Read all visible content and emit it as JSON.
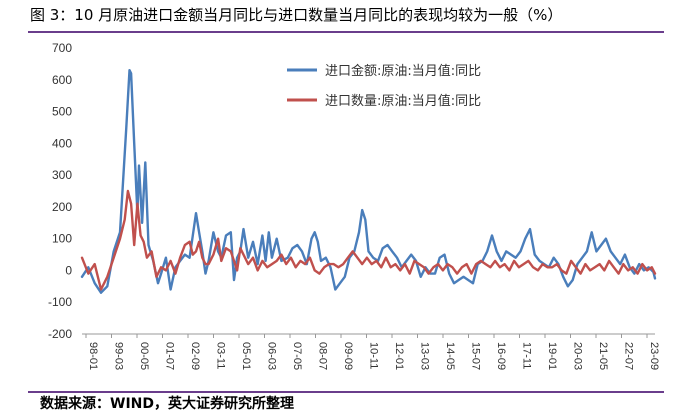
{
  "figure": {
    "title": "图 3：10 月原油进口金额当月同比与进口数量当月同比的表现均较为一般（%）",
    "source": "数据来源：WIND，英大证券研究所整理"
  },
  "chart_data": {
    "type": "line",
    "ylim": [
      -200,
      700
    ],
    "yticks": [
      "700",
      "600",
      "500",
      "400",
      "300",
      "200",
      "100",
      "0",
      "-100",
      "-200"
    ],
    "xticks": [
      "98-01",
      "99-03",
      "00-05",
      "01-07",
      "02-09",
      "03-11",
      "05-01",
      "06-03",
      "07-05",
      "08-07",
      "09-09",
      "10-11",
      "12-01",
      "13-03",
      "14-05",
      "15-07",
      "16-09",
      "17-11",
      "19-01",
      "20-03",
      "21-05",
      "22-07",
      "23-09"
    ],
    "legend_position": "top-right",
    "series": [
      {
        "name": "进口金额:原油:当月值:同比",
        "color": "#4a7ebb",
        "points": [
          [
            0,
            -20
          ],
          [
            4,
            10
          ],
          [
            8,
            -40
          ],
          [
            12,
            -70
          ],
          [
            16,
            -50
          ],
          [
            20,
            60
          ],
          [
            24,
            120
          ],
          [
            28,
            450
          ],
          [
            30,
            630
          ],
          [
            31,
            620
          ],
          [
            33,
            400
          ],
          [
            35,
            180
          ],
          [
            36,
            330
          ],
          [
            38,
            150
          ],
          [
            40,
            340
          ],
          [
            42,
            80
          ],
          [
            45,
            30
          ],
          [
            48,
            -40
          ],
          [
            50,
            -10
          ],
          [
            53,
            40
          ],
          [
            56,
            -60
          ],
          [
            59,
            10
          ],
          [
            62,
            30
          ],
          [
            65,
            50
          ],
          [
            68,
            40
          ],
          [
            70,
            110
          ],
          [
            72,
            180
          ],
          [
            74,
            120
          ],
          [
            76,
            60
          ],
          [
            78,
            -10
          ],
          [
            80,
            30
          ],
          [
            83,
            120
          ],
          [
            86,
            60
          ],
          [
            88,
            40
          ],
          [
            91,
            110
          ],
          [
            94,
            120
          ],
          [
            96,
            -30
          ],
          [
            98,
            40
          ],
          [
            100,
            60
          ],
          [
            102,
            130
          ],
          [
            105,
            40
          ],
          [
            108,
            90
          ],
          [
            111,
            20
          ],
          [
            114,
            110
          ],
          [
            116,
            30
          ],
          [
            118,
            120
          ],
          [
            120,
            40
          ],
          [
            123,
            100
          ],
          [
            126,
            30
          ],
          [
            130,
            40
          ],
          [
            133,
            70
          ],
          [
            136,
            80
          ],
          [
            139,
            60
          ],
          [
            142,
            20
          ],
          [
            145,
            100
          ],
          [
            147,
            120
          ],
          [
            149,
            90
          ],
          [
            151,
            30
          ],
          [
            154,
            40
          ],
          [
            157,
            10
          ],
          [
            160,
            -60
          ],
          [
            163,
            -40
          ],
          [
            166,
            -20
          ],
          [
            169,
            40
          ],
          [
            172,
            60
          ],
          [
            175,
            120
          ],
          [
            177,
            190
          ],
          [
            179,
            160
          ],
          [
            181,
            60
          ],
          [
            184,
            40
          ],
          [
            187,
            30
          ],
          [
            190,
            70
          ],
          [
            193,
            80
          ],
          [
            196,
            60
          ],
          [
            199,
            40
          ],
          [
            202,
            10
          ],
          [
            205,
            30
          ],
          [
            208,
            50
          ],
          [
            211,
            30
          ],
          [
            214,
            -20
          ],
          [
            217,
            10
          ],
          [
            220,
            -10
          ],
          [
            223,
            -10
          ],
          [
            226,
            40
          ],
          [
            229,
            50
          ],
          [
            232,
            -10
          ],
          [
            235,
            -40
          ],
          [
            238,
            -30
          ],
          [
            241,
            -20
          ],
          [
            244,
            -30
          ],
          [
            247,
            -40
          ],
          [
            250,
            20
          ],
          [
            253,
            30
          ],
          [
            256,
            60
          ],
          [
            259,
            110
          ],
          [
            262,
            60
          ],
          [
            265,
            30
          ],
          [
            268,
            60
          ],
          [
            271,
            50
          ],
          [
            274,
            40
          ],
          [
            277,
            60
          ],
          [
            280,
            100
          ],
          [
            283,
            130
          ],
          [
            286,
            50
          ],
          [
            289,
            30
          ],
          [
            292,
            20
          ],
          [
            295,
            10
          ],
          [
            298,
            40
          ],
          [
            301,
            20
          ],
          [
            304,
            -20
          ],
          [
            307,
            -50
          ],
          [
            310,
            -30
          ],
          [
            313,
            20
          ],
          [
            316,
            40
          ],
          [
            319,
            60
          ],
          [
            322,
            120
          ],
          [
            325,
            60
          ],
          [
            328,
            80
          ],
          [
            331,
            100
          ],
          [
            334,
            60
          ],
          [
            337,
            40
          ],
          [
            340,
            20
          ],
          [
            343,
            50
          ],
          [
            346,
            10
          ],
          [
            349,
            -10
          ],
          [
            352,
            20
          ],
          [
            355,
            0
          ],
          [
            358,
            10
          ],
          [
            361,
            -5
          ],
          [
            362,
            -25
          ]
        ]
      },
      {
        "name": "进口数量:原油:当月值:同比",
        "color": "#c0504d",
        "points": [
          [
            0,
            40
          ],
          [
            4,
            -10
          ],
          [
            8,
            20
          ],
          [
            12,
            -60
          ],
          [
            16,
            -20
          ],
          [
            20,
            40
          ],
          [
            24,
            100
          ],
          [
            27,
            160
          ],
          [
            29,
            250
          ],
          [
            31,
            210
          ],
          [
            33,
            80
          ],
          [
            35,
            210
          ],
          [
            37,
            110
          ],
          [
            39,
            90
          ],
          [
            41,
            40
          ],
          [
            44,
            60
          ],
          [
            47,
            -20
          ],
          [
            50,
            10
          ],
          [
            53,
            0
          ],
          [
            56,
            30
          ],
          [
            59,
            -10
          ],
          [
            62,
            40
          ],
          [
            65,
            80
          ],
          [
            68,
            90
          ],
          [
            70,
            50
          ],
          [
            72,
            60
          ],
          [
            74,
            90
          ],
          [
            76,
            40
          ],
          [
            78,
            20
          ],
          [
            80,
            20
          ],
          [
            83,
            50
          ],
          [
            86,
            100
          ],
          [
            88,
            30
          ],
          [
            91,
            70
          ],
          [
            94,
            60
          ],
          [
            96,
            30
          ],
          [
            98,
            0
          ],
          [
            100,
            70
          ],
          [
            102,
            50
          ],
          [
            105,
            20
          ],
          [
            108,
            40
          ],
          [
            111,
            0
          ],
          [
            114,
            30
          ],
          [
            117,
            10
          ],
          [
            120,
            20
          ],
          [
            123,
            30
          ],
          [
            126,
            50
          ],
          [
            129,
            20
          ],
          [
            132,
            40
          ],
          [
            135,
            10
          ],
          [
            138,
            30
          ],
          [
            141,
            20
          ],
          [
            144,
            40
          ],
          [
            147,
            0
          ],
          [
            150,
            -10
          ],
          [
            153,
            10
          ],
          [
            156,
            20
          ],
          [
            159,
            20
          ],
          [
            162,
            10
          ],
          [
            165,
            20
          ],
          [
            168,
            40
          ],
          [
            171,
            60
          ],
          [
            174,
            40
          ],
          [
            177,
            20
          ],
          [
            180,
            40
          ],
          [
            183,
            20
          ],
          [
            186,
            30
          ],
          [
            189,
            10
          ],
          [
            192,
            40
          ],
          [
            195,
            10
          ],
          [
            198,
            20
          ],
          [
            201,
            0
          ],
          [
            204,
            20
          ],
          [
            207,
            -10
          ],
          [
            210,
            30
          ],
          [
            213,
            20
          ],
          [
            216,
            10
          ],
          [
            219,
            -10
          ],
          [
            222,
            10
          ],
          [
            225,
            20
          ],
          [
            228,
            0
          ],
          [
            231,
            20
          ],
          [
            234,
            10
          ],
          [
            237,
            -10
          ],
          [
            240,
            10
          ],
          [
            243,
            20
          ],
          [
            246,
            -10
          ],
          [
            249,
            20
          ],
          [
            252,
            30
          ],
          [
            255,
            20
          ],
          [
            258,
            10
          ],
          [
            261,
            30
          ],
          [
            264,
            10
          ],
          [
            267,
            20
          ],
          [
            270,
            0
          ],
          [
            273,
            30
          ],
          [
            276,
            10
          ],
          [
            279,
            20
          ],
          [
            282,
            30
          ],
          [
            285,
            10
          ],
          [
            288,
            0
          ],
          [
            291,
            20
          ],
          [
            294,
            10
          ],
          [
            297,
            10
          ],
          [
            300,
            20
          ],
          [
            303,
            0
          ],
          [
            306,
            -10
          ],
          [
            309,
            30
          ],
          [
            312,
            10
          ],
          [
            315,
            -10
          ],
          [
            318,
            20
          ],
          [
            321,
            0
          ],
          [
            324,
            10
          ],
          [
            327,
            20
          ],
          [
            330,
            0
          ],
          [
            333,
            30
          ],
          [
            336,
            10
          ],
          [
            339,
            -10
          ],
          [
            342,
            20
          ],
          [
            345,
            0
          ],
          [
            348,
            10
          ],
          [
            351,
            -10
          ],
          [
            354,
            20
          ],
          [
            357,
            0
          ],
          [
            360,
            10
          ],
          [
            362,
            -10
          ]
        ]
      }
    ]
  }
}
